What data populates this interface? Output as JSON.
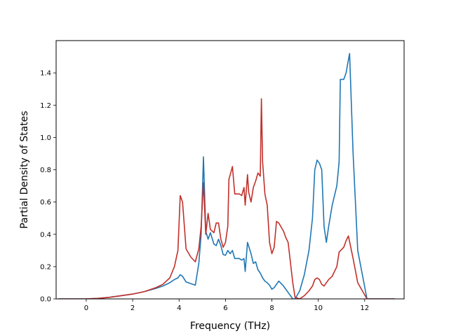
{
  "chart_data": {
    "type": "line",
    "title": "",
    "xlabel": "Frequency (THz)",
    "ylabel": "Partial Density of States",
    "xlim": [
      -1.3,
      13.7
    ],
    "ylim": [
      0.0,
      1.6
    ],
    "xticks": [
      0,
      2,
      4,
      6,
      8,
      10,
      12
    ],
    "xtick_labels": [
      "0",
      "2",
      "4",
      "6",
      "8",
      "10",
      "12"
    ],
    "yticks": [
      0.0,
      0.2,
      0.4,
      0.6,
      0.8,
      1.0,
      1.2,
      1.4
    ],
    "ytick_labels": [
      "0.0",
      "0.2",
      "0.4",
      "0.6",
      "0.8",
      "1.0",
      "1.2",
      "1.4"
    ],
    "grid": false,
    "legend": "none",
    "series": [
      {
        "color": "#1f77b4",
        "x": [
          -1.2,
          0.0,
          0.5,
          1.0,
          1.5,
          2.0,
          2.5,
          3.0,
          3.3,
          3.6,
          3.8,
          3.95,
          4.05,
          4.15,
          4.3,
          4.5,
          4.7,
          4.85,
          4.95,
          5.05,
          5.15,
          5.25,
          5.35,
          5.5,
          5.6,
          5.7,
          5.8,
          5.9,
          6.0,
          6.1,
          6.2,
          6.3,
          6.4,
          6.5,
          6.6,
          6.7,
          6.8,
          6.85,
          6.95,
          7.1,
          7.2,
          7.3,
          7.4,
          7.5,
          7.6,
          7.7,
          7.8,
          7.9,
          8.0,
          8.1,
          8.2,
          8.3,
          8.5,
          8.7,
          8.9,
          9.0,
          9.2,
          9.4,
          9.6,
          9.75,
          9.85,
          9.95,
          10.05,
          10.15,
          10.25,
          10.35,
          10.45,
          10.6,
          10.8,
          10.9,
          10.95,
          11.1,
          11.2,
          11.3,
          11.35,
          11.5,
          11.7,
          11.9,
          12.1,
          13.3
        ],
        "y": [
          0.0,
          0.0,
          0.003,
          0.01,
          0.02,
          0.03,
          0.045,
          0.065,
          0.08,
          0.1,
          0.12,
          0.13,
          0.15,
          0.14,
          0.105,
          0.095,
          0.085,
          0.22,
          0.4,
          0.88,
          0.42,
          0.37,
          0.41,
          0.34,
          0.33,
          0.37,
          0.33,
          0.275,
          0.27,
          0.3,
          0.28,
          0.3,
          0.25,
          0.25,
          0.25,
          0.24,
          0.25,
          0.17,
          0.35,
          0.28,
          0.22,
          0.23,
          0.18,
          0.16,
          0.13,
          0.11,
          0.1,
          0.085,
          0.06,
          0.07,
          0.09,
          0.11,
          0.08,
          0.04,
          0.0,
          0.0,
          0.05,
          0.15,
          0.3,
          0.5,
          0.8,
          0.86,
          0.84,
          0.8,
          0.45,
          0.35,
          0.45,
          0.58,
          0.7,
          0.85,
          1.36,
          1.36,
          1.4,
          1.48,
          1.52,
          0.9,
          0.3,
          0.15,
          0.0,
          0.0
        ]
      },
      {
        "color": "#c1302a",
        "x": [
          -1.2,
          0.0,
          0.5,
          1.0,
          1.5,
          2.0,
          2.5,
          3.0,
          3.3,
          3.6,
          3.8,
          3.95,
          4.05,
          4.15,
          4.3,
          4.5,
          4.7,
          4.85,
          4.95,
          5.05,
          5.15,
          5.25,
          5.35,
          5.5,
          5.6,
          5.7,
          5.8,
          5.9,
          6.0,
          6.1,
          6.15,
          6.3,
          6.4,
          6.5,
          6.6,
          6.7,
          6.8,
          6.85,
          6.95,
          7.0,
          7.1,
          7.2,
          7.3,
          7.4,
          7.5,
          7.55,
          7.6,
          7.7,
          7.8,
          7.9,
          8.0,
          8.1,
          8.2,
          8.3,
          8.5,
          8.6,
          8.7,
          8.9,
          9.0,
          9.2,
          9.4,
          9.6,
          9.75,
          9.85,
          9.95,
          10.05,
          10.15,
          10.25,
          10.35,
          10.45,
          10.6,
          10.8,
          10.9,
          11.1,
          11.2,
          11.3,
          11.5,
          11.7,
          11.9,
          12.1,
          13.3
        ],
        "y": [
          0.0,
          0.0,
          0.003,
          0.01,
          0.02,
          0.03,
          0.045,
          0.07,
          0.09,
          0.13,
          0.2,
          0.3,
          0.64,
          0.6,
          0.31,
          0.26,
          0.23,
          0.31,
          0.45,
          0.72,
          0.4,
          0.53,
          0.43,
          0.41,
          0.47,
          0.47,
          0.37,
          0.32,
          0.35,
          0.45,
          0.74,
          0.82,
          0.65,
          0.65,
          0.65,
          0.64,
          0.69,
          0.58,
          0.77,
          0.66,
          0.6,
          0.69,
          0.73,
          0.78,
          0.76,
          1.24,
          0.85,
          0.65,
          0.58,
          0.35,
          0.28,
          0.32,
          0.48,
          0.47,
          0.42,
          0.38,
          0.35,
          0.1,
          0.01,
          0.0,
          0.02,
          0.05,
          0.08,
          0.12,
          0.13,
          0.12,
          0.09,
          0.08,
          0.1,
          0.12,
          0.14,
          0.2,
          0.29,
          0.32,
          0.36,
          0.39,
          0.25,
          0.1,
          0.05,
          0.0,
          0.0
        ]
      }
    ]
  }
}
